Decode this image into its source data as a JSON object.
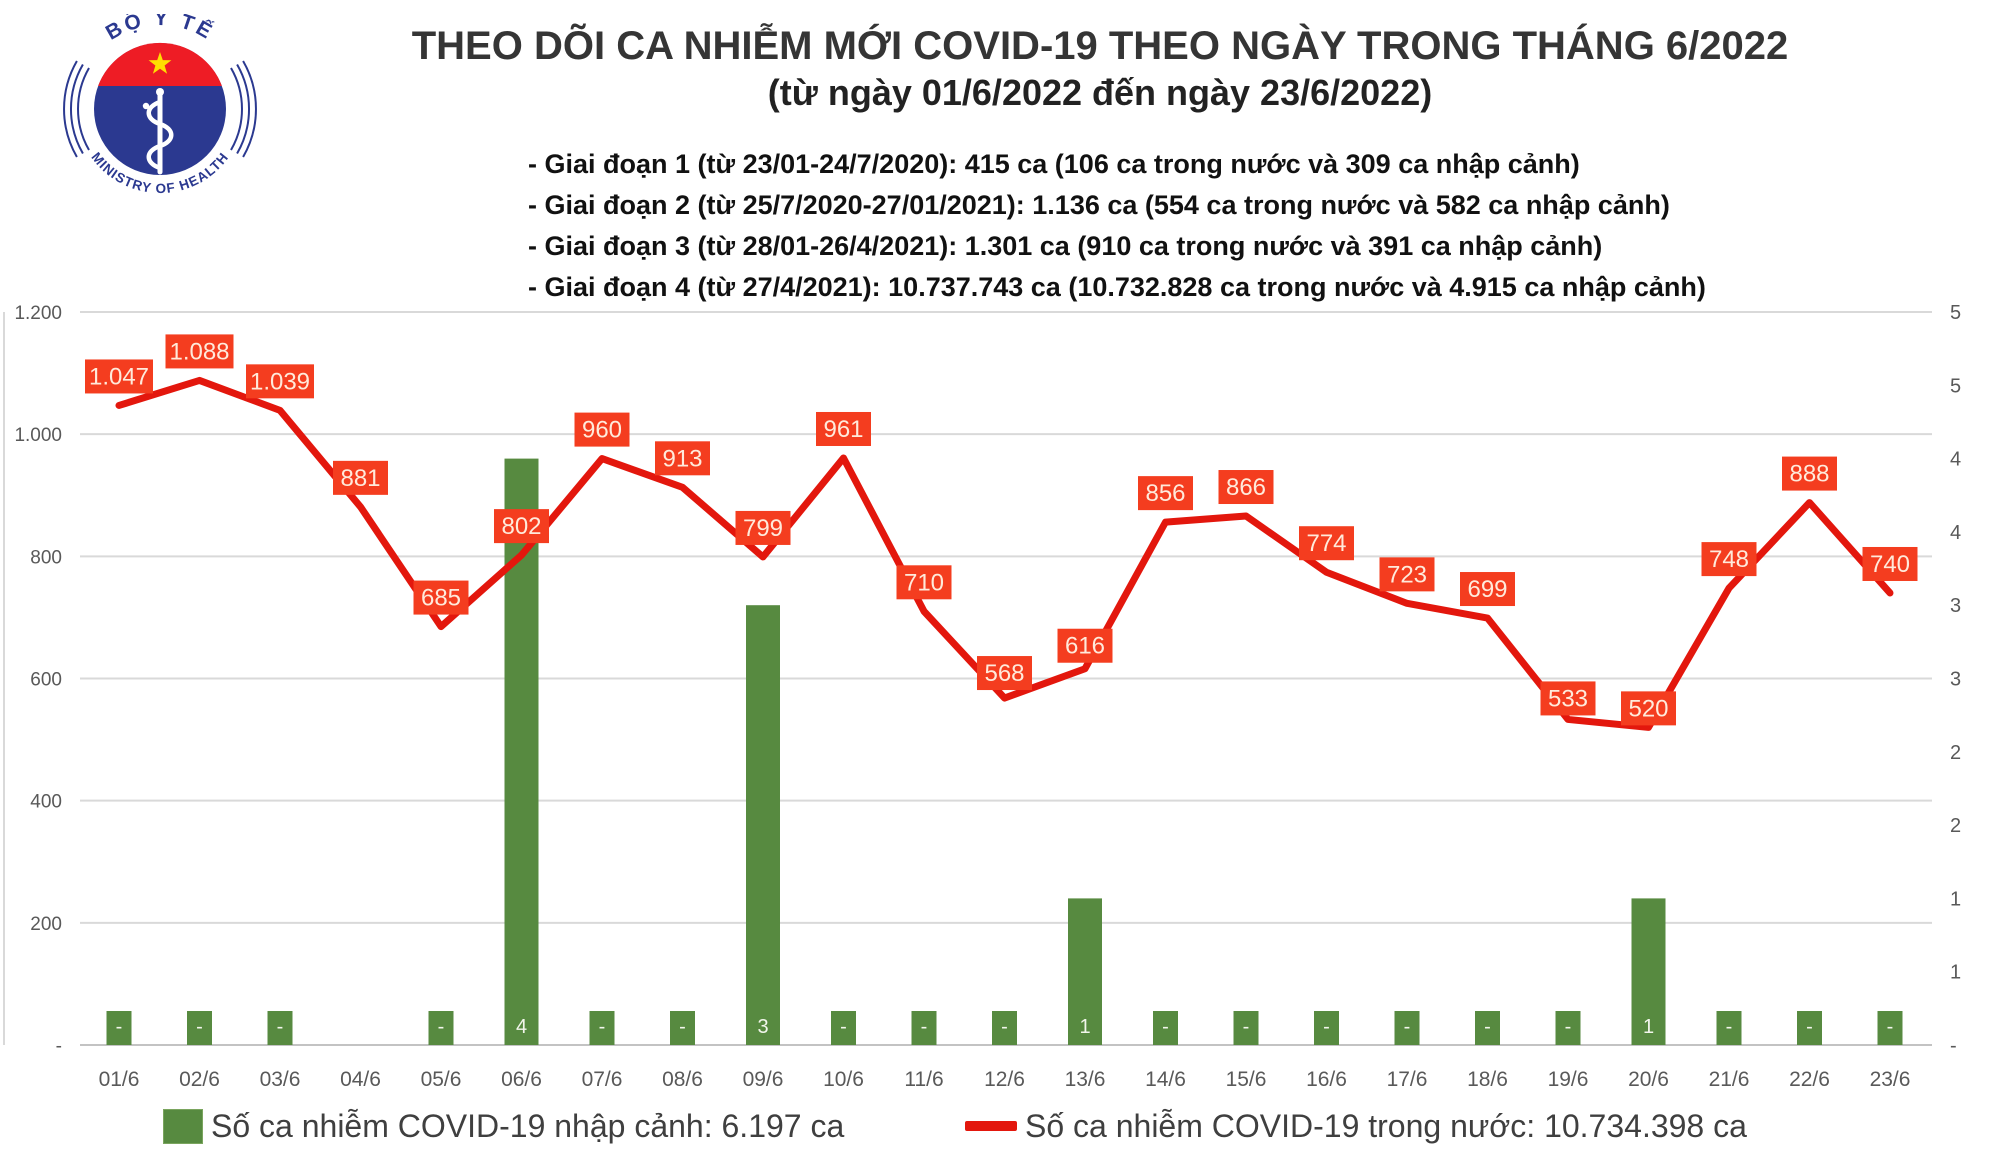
{
  "header": {
    "title": "THEO DÕI CA NHIỄM MỚI COVID-19 THEO NGÀY TRONG THÁNG 6/2022",
    "subtitle": "(từ ngày 01/6/2022 đến ngày 23/6/2022)",
    "phases": [
      "- Giai đoạn 1 (từ 23/01-24/7/2020): 415 ca (106 ca trong nước và 309 ca nhập cảnh)",
      "- Giai đoạn 2 (từ 25/7/2020-27/01/2021): 1.136 ca (554 ca trong nước và 582 ca nhập cảnh)",
      "- Giai đoạn 3 (từ 28/01-26/4/2021): 1.301 ca (910 ca trong nước và 391 ca nhập cảnh)",
      "- Giai đoạn 4 (từ 27/4/2021): 10.737.743 ca (10.732.828 ca trong nước và 4.915 ca nhập cảnh)"
    ]
  },
  "logo": {
    "top_text": "BỘ Y TẾ",
    "bottom_text": "MINISTRY OF HEALTH",
    "colors": {
      "blue": "#2b3990",
      "red": "#ee1c25",
      "star": "#ffde00"
    }
  },
  "legend": {
    "items": [
      {
        "label": "Số ca nhiễm COVID-19 nhập cảnh: 6.197 ca",
        "marker": "bar"
      },
      {
        "label": "Số ca nhiễm COVID-19 trong nước: 10.734.398 ca",
        "marker": "line"
      }
    ]
  },
  "chart_data": {
    "type": "combo",
    "categories": [
      "01/6",
      "02/6",
      "03/6",
      "04/6",
      "05/6",
      "06/6",
      "07/6",
      "08/6",
      "09/6",
      "10/6",
      "11/6",
      "12/6",
      "13/6",
      "14/6",
      "15/6",
      "16/6",
      "17/6",
      "18/6",
      "19/6",
      "20/6",
      "21/6",
      "22/6",
      "23/6"
    ],
    "series": [
      {
        "name": "Số ca nhiễm COVID-19 nhập cảnh",
        "type": "bar",
        "axis": "right",
        "values": [
          0,
          0,
          0,
          null,
          0,
          4,
          0,
          0,
          3,
          0,
          0,
          0,
          1,
          0,
          0,
          0,
          0,
          0,
          0,
          1,
          0,
          0,
          0
        ],
        "labels": [
          "-",
          "-",
          "-",
          "",
          "-",
          "4",
          "-",
          "-",
          "3",
          "-",
          "-",
          "-",
          "1",
          "-",
          "-",
          "-",
          "-",
          "-",
          "-",
          "1",
          "-",
          "-",
          "-"
        ]
      },
      {
        "name": "Số ca nhiễm COVID-19 trong nước",
        "type": "line",
        "axis": "left",
        "values": [
          1047,
          1088,
          1039,
          881,
          685,
          802,
          960,
          913,
          799,
          961,
          710,
          568,
          616,
          856,
          866,
          774,
          723,
          699,
          533,
          520,
          748,
          888,
          740
        ],
        "labels": [
          "1.047",
          "1.088",
          "1.039",
          "881",
          "685",
          "802",
          "960",
          "913",
          "799",
          "961",
          "710",
          "568",
          "616",
          "856",
          "866",
          "774",
          "723",
          "699",
          "533",
          "520",
          "748",
          "888",
          "740"
        ]
      }
    ],
    "left_axis": {
      "ticks": [
        "1.200",
        "1.000",
        "800",
        "600",
        "400",
        "200",
        "-"
      ],
      "range": [
        0,
        1200
      ]
    },
    "right_axis": {
      "ticks": [
        "5",
        "5",
        "4",
        "4",
        "3",
        "3",
        "2",
        "2",
        "1",
        "1",
        "-"
      ],
      "range": [
        0,
        5
      ]
    },
    "grid": true,
    "legend_position": "bottom",
    "colors": {
      "bar": "#578a40",
      "line": "#e3170d",
      "label_bg": "#f43d1f",
      "label_text": "#ffeadb",
      "grid": "#d9d9d9",
      "baseline": "#c3c3c3",
      "axis_text": "#595959"
    }
  }
}
